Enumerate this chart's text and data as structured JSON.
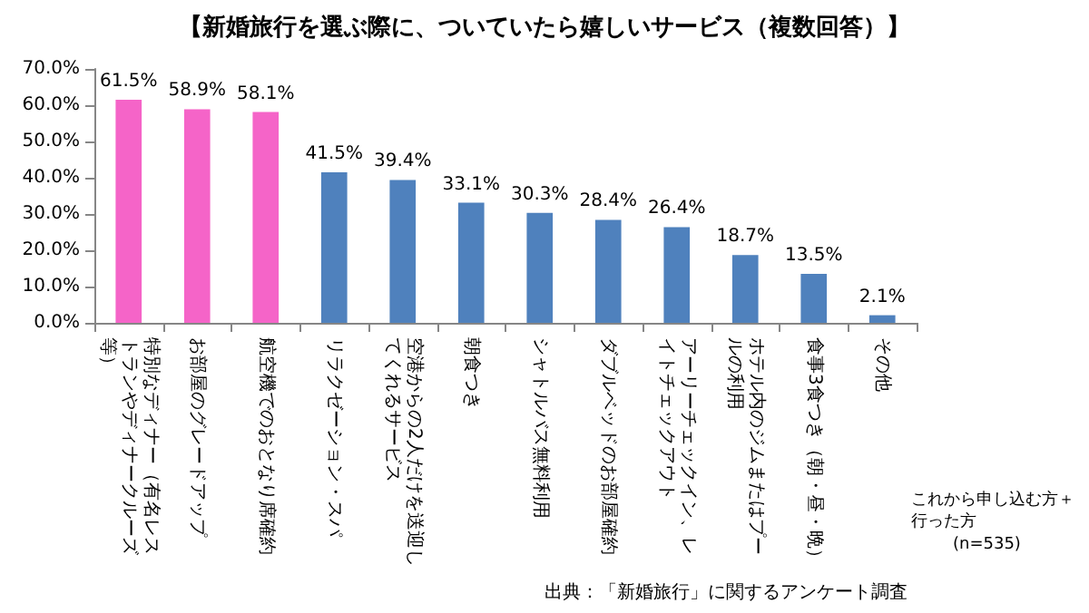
{
  "chart_data": {
    "type": "bar",
    "title": "【新婚旅行を選ぶ際に、ついていたら嬉しいサービス（複数回答）】",
    "categories": [
      "特別なディナー（有名レストランやディナークルーズ等）",
      "お部屋のグレードアップ",
      "航空機でのおとなり席確約",
      "リラクゼーション・スパ",
      "空港からの2人だけを送迎してくれるサービス",
      "朝食つき",
      "シャトルバス無料利用",
      "ダブルベッドのお部屋確約",
      "アーリーチェックイン、レイトチェックアウト",
      "ホテル内のジムまたはプールの利用",
      "食事3食つき（朝・昼・晩）",
      "その他"
    ],
    "values": [
      61.5,
      58.9,
      58.1,
      41.5,
      39.4,
      33.1,
      30.3,
      28.4,
      26.4,
      18.7,
      13.5,
      2.1
    ],
    "colors": [
      "#f564c8",
      "#f564c8",
      "#f564c8",
      "#4f81bd",
      "#4f81bd",
      "#4f81bd",
      "#4f81bd",
      "#4f81bd",
      "#4f81bd",
      "#4f81bd",
      "#4f81bd",
      "#4f81bd"
    ],
    "value_labels": [
      "61.5%",
      "58.9%",
      "58.1%",
      "41.5%",
      "39.4%",
      "33.1%",
      "30.3%",
      "28.4%",
      "26.4%",
      "18.7%",
      "13.5%",
      "2.1%"
    ],
    "ylim": [
      0,
      70
    ],
    "yticks": [
      {
        "value": 0,
        "label": "0.0%"
      },
      {
        "value": 10,
        "label": "10.0%"
      },
      {
        "value": 20,
        "label": "20.0%"
      },
      {
        "value": 30,
        "label": "30.0%"
      },
      {
        "value": 40,
        "label": "40.0%"
      },
      {
        "value": 50,
        "label": "50.0%"
      },
      {
        "value": 60,
        "label": "60.0%"
      },
      {
        "value": 70,
        "label": "70.0%"
      }
    ],
    "grid": false,
    "annotations": [
      "これから申し込む方＋行った方",
      "(n=535)",
      "出典：「新婚旅行」に関するアンケート調査"
    ]
  }
}
